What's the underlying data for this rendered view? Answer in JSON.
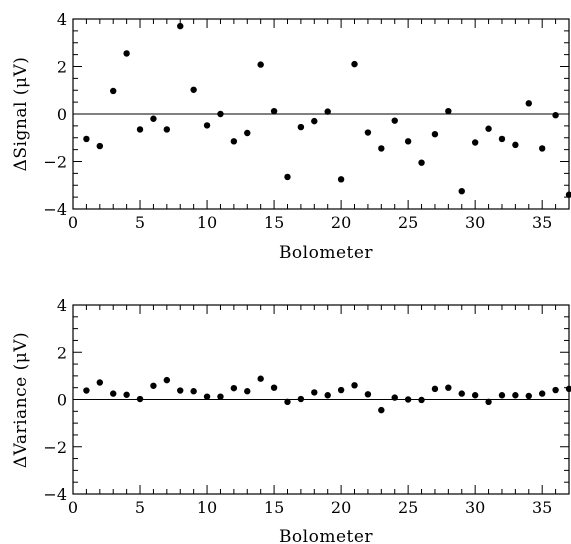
{
  "chart_data": [
    {
      "type": "scatter",
      "xlabel": "Bolometer",
      "ylabel": "ΔSignal (μV)",
      "xlim": [
        0,
        37
      ],
      "ylim": [
        -4,
        4
      ],
      "xticks": [
        0,
        5,
        10,
        15,
        20,
        25,
        30,
        35
      ],
      "yticks": [
        -4,
        -2,
        0,
        2,
        4
      ],
      "reference_line_y": 0,
      "series": [
        {
          "x": [
            1,
            2,
            3,
            4,
            5,
            6,
            7,
            8,
            9,
            10,
            11,
            12,
            13,
            14,
            15,
            16,
            17,
            18,
            19,
            20,
            21,
            22,
            23,
            24,
            25,
            26,
            27,
            28,
            29,
            30,
            31,
            32,
            33,
            34,
            35,
            36,
            37
          ],
          "y": [
            -1.05,
            -1.35,
            0.97,
            2.55,
            -0.65,
            -0.2,
            -0.65,
            3.7,
            1.02,
            -0.48,
            0.0,
            -1.15,
            -0.8,
            2.08,
            0.12,
            -2.65,
            -0.55,
            -0.3,
            0.1,
            -2.75,
            2.1,
            -0.78,
            -1.45,
            -0.28,
            -1.15,
            -2.05,
            -0.85,
            0.12,
            -3.25,
            -1.2,
            -0.62,
            -1.05,
            -1.3,
            0.45,
            -1.45,
            -0.05,
            -3.4
          ]
        }
      ]
    },
    {
      "type": "scatter",
      "xlabel": "Bolometer",
      "ylabel": "ΔVariance (μV)",
      "xlim": [
        0,
        37
      ],
      "ylim": [
        -4,
        4
      ],
      "xticks": [
        0,
        5,
        10,
        15,
        20,
        25,
        30,
        35
      ],
      "yticks": [
        -4,
        -2,
        0,
        2,
        4
      ],
      "reference_line_y": 0,
      "series": [
        {
          "x": [
            1,
            2,
            3,
            4,
            5,
            6,
            7,
            8,
            9,
            10,
            11,
            12,
            13,
            14,
            15,
            16,
            17,
            18,
            19,
            20,
            21,
            22,
            23,
            24,
            25,
            26,
            27,
            28,
            29,
            30,
            31,
            32,
            33,
            34,
            35,
            36,
            37
          ],
          "y": [
            0.38,
            0.72,
            0.25,
            0.2,
            0.02,
            0.58,
            0.82,
            0.38,
            0.35,
            0.12,
            0.12,
            0.48,
            0.35,
            0.88,
            0.5,
            -0.1,
            0.02,
            0.3,
            0.18,
            0.4,
            0.6,
            0.22,
            -0.45,
            0.08,
            0.0,
            -0.02,
            0.45,
            0.5,
            0.25,
            0.18,
            -0.1,
            0.18,
            0.18,
            0.15,
            0.25,
            0.4,
            0.45
          ]
        }
      ]
    }
  ]
}
